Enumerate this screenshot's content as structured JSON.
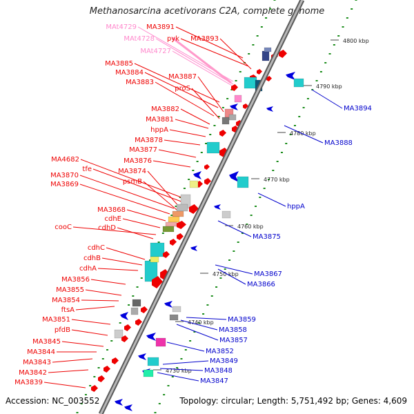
{
  "title": "Methanosarcina acetivorans C2A, complete genome",
  "accession_label": "Accession: NC_003552",
  "summary_label": "Topology: circular; Length: 5,751,492 bp; Genes: 4,609",
  "colors": {
    "forward_label": "#ee0000",
    "reverse_label": "#0000cc",
    "rna_label": "#ff88cc",
    "backbone": "#777777",
    "ruler": "#1a8c1a",
    "forward_feature": "#ee0000",
    "reverse_feature": "#0000dd",
    "rna_feature": "#ff9acb"
  },
  "kbp_labels": [
    "4800 kbp",
    "4790 kbp",
    "4780 kbp",
    "4770 kbp",
    "4760 kbp",
    "4750 kbp",
    "4740 kbp",
    "4730 kbp"
  ],
  "left_labels": [
    {
      "text": "MA3891",
      "type": "forward"
    },
    {
      "text": "pyk",
      "type": "forward"
    },
    {
      "text": "MA3893",
      "type": "forward"
    },
    {
      "text": "MAt4729",
      "type": "rna"
    },
    {
      "text": "MAt4728",
      "type": "rna"
    },
    {
      "text": "MAt4727",
      "type": "rna"
    },
    {
      "text": "MA3885",
      "type": "forward"
    },
    {
      "text": "MA3884",
      "type": "forward"
    },
    {
      "text": "MA3887",
      "type": "forward"
    },
    {
      "text": "MA3883",
      "type": "forward"
    },
    {
      "text": "proS",
      "type": "forward"
    },
    {
      "text": "MA3882",
      "type": "forward"
    },
    {
      "text": "MA3881",
      "type": "forward"
    },
    {
      "text": "hppA",
      "type": "forward"
    },
    {
      "text": "MA3878",
      "type": "forward"
    },
    {
      "text": "MA3877",
      "type": "forward"
    },
    {
      "text": "MA3876",
      "type": "forward"
    },
    {
      "text": "MA4682",
      "type": "forward"
    },
    {
      "text": "tfe",
      "type": "forward"
    },
    {
      "text": "MA3874",
      "type": "forward"
    },
    {
      "text": "MA3870",
      "type": "forward"
    },
    {
      "text": "psmB",
      "type": "forward"
    },
    {
      "text": "MA3869",
      "type": "forward"
    },
    {
      "text": "MA3868",
      "type": "forward"
    },
    {
      "text": "cdhE",
      "type": "forward"
    },
    {
      "text": "cooC",
      "type": "forward"
    },
    {
      "text": "cdhD",
      "type": "forward"
    },
    {
      "text": "cdhC",
      "type": "forward"
    },
    {
      "text": "cdhB",
      "type": "forward"
    },
    {
      "text": "cdhA",
      "type": "forward"
    },
    {
      "text": "MA3856",
      "type": "forward"
    },
    {
      "text": "MA3855",
      "type": "forward"
    },
    {
      "text": "MA3854",
      "type": "forward"
    },
    {
      "text": "ftsA",
      "type": "forward"
    },
    {
      "text": "MA3851",
      "type": "forward"
    },
    {
      "text": "pfdB",
      "type": "forward"
    },
    {
      "text": "MA3845",
      "type": "forward"
    },
    {
      "text": "MA3844",
      "type": "forward"
    },
    {
      "text": "MA3843",
      "type": "forward"
    },
    {
      "text": "MA3842",
      "type": "forward"
    },
    {
      "text": "MA3839",
      "type": "forward"
    }
  ],
  "right_labels": [
    {
      "text": "MA3894"
    },
    {
      "text": "MA3888"
    },
    {
      "text": "hppA"
    },
    {
      "text": "MA3875"
    },
    {
      "text": "MA3867"
    },
    {
      "text": "MA3866"
    },
    {
      "text": "MA3859"
    },
    {
      "text": "MA3858"
    },
    {
      "text": "MA3857"
    },
    {
      "text": "MA3852"
    },
    {
      "text": "MA3849"
    },
    {
      "text": "MA3848"
    },
    {
      "text": "MA3847"
    }
  ]
}
